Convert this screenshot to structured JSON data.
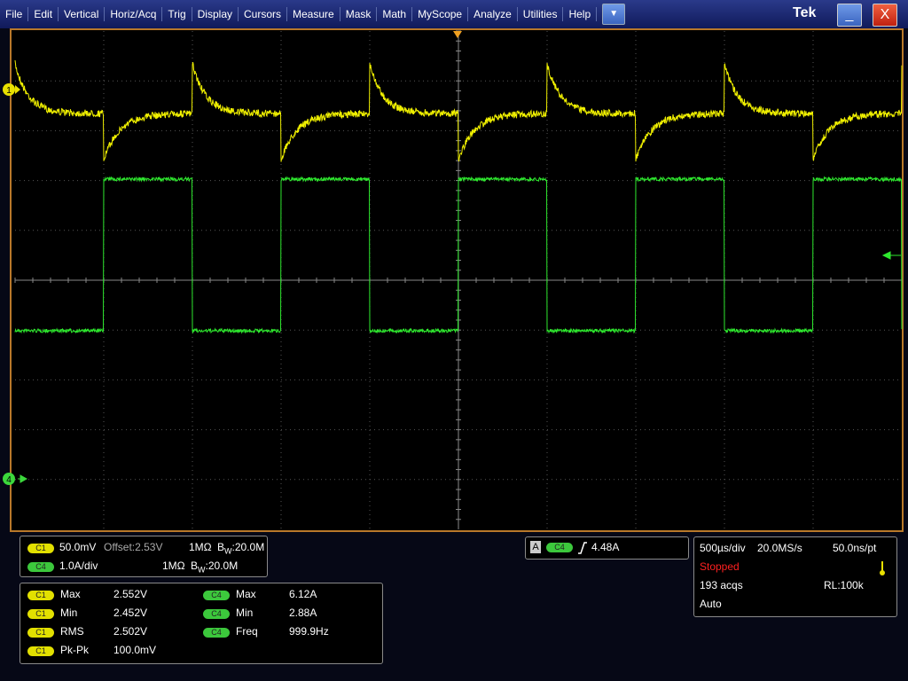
{
  "menu": {
    "items": [
      "File",
      "Edit",
      "Vertical",
      "Horiz/Acq",
      "Trig",
      "Display",
      "Cursors",
      "Measure",
      "Mask",
      "Math",
      "MyScope",
      "Analyze",
      "Utilities",
      "Help"
    ],
    "brand": "Tek",
    "close": "X"
  },
  "markers": {
    "ch1": "1",
    "ch4": "4"
  },
  "channels": [
    {
      "badge": "C1",
      "scale": "50.0mV",
      "offset": "Offset:2.53V",
      "impedance": "1MΩ",
      "bw_prefix": "B",
      "bw_sub": "W",
      "bw_value": ":20.0M"
    },
    {
      "badge": "C4",
      "scale": "1.0A/div",
      "impedance": "1MΩ",
      "bw_prefix": "B",
      "bw_sub": "W",
      "bw_value": ":20.0M"
    }
  ],
  "trigger": {
    "label": "A",
    "source": "C4",
    "level": "4.48A"
  },
  "measurements": [
    [
      {
        "badge": "C1",
        "name": "Max",
        "value": "2.552V"
      },
      {
        "badge": "C1",
        "name": "Min",
        "value": "2.452V"
      },
      {
        "badge": "C1",
        "name": "RMS",
        "value": "2.502V"
      },
      {
        "badge": "C1",
        "name": "Pk-Pk",
        "value": "100.0mV"
      }
    ],
    [
      {
        "badge": "C4",
        "name": "Max",
        "value": "6.12A"
      },
      {
        "badge": "C4",
        "name": "Min",
        "value": "2.88A"
      },
      {
        "badge": "C4",
        "name": "Freq",
        "value": "999.9Hz"
      }
    ]
  ],
  "horizontal": {
    "scale": "500µs/div",
    "sample_rate": "20.0MS/s",
    "resolution": "50.0ns/pt",
    "state": "Stopped",
    "acqs": "193 acqs",
    "record_length": "RL:100k",
    "mode": "Auto"
  }
}
